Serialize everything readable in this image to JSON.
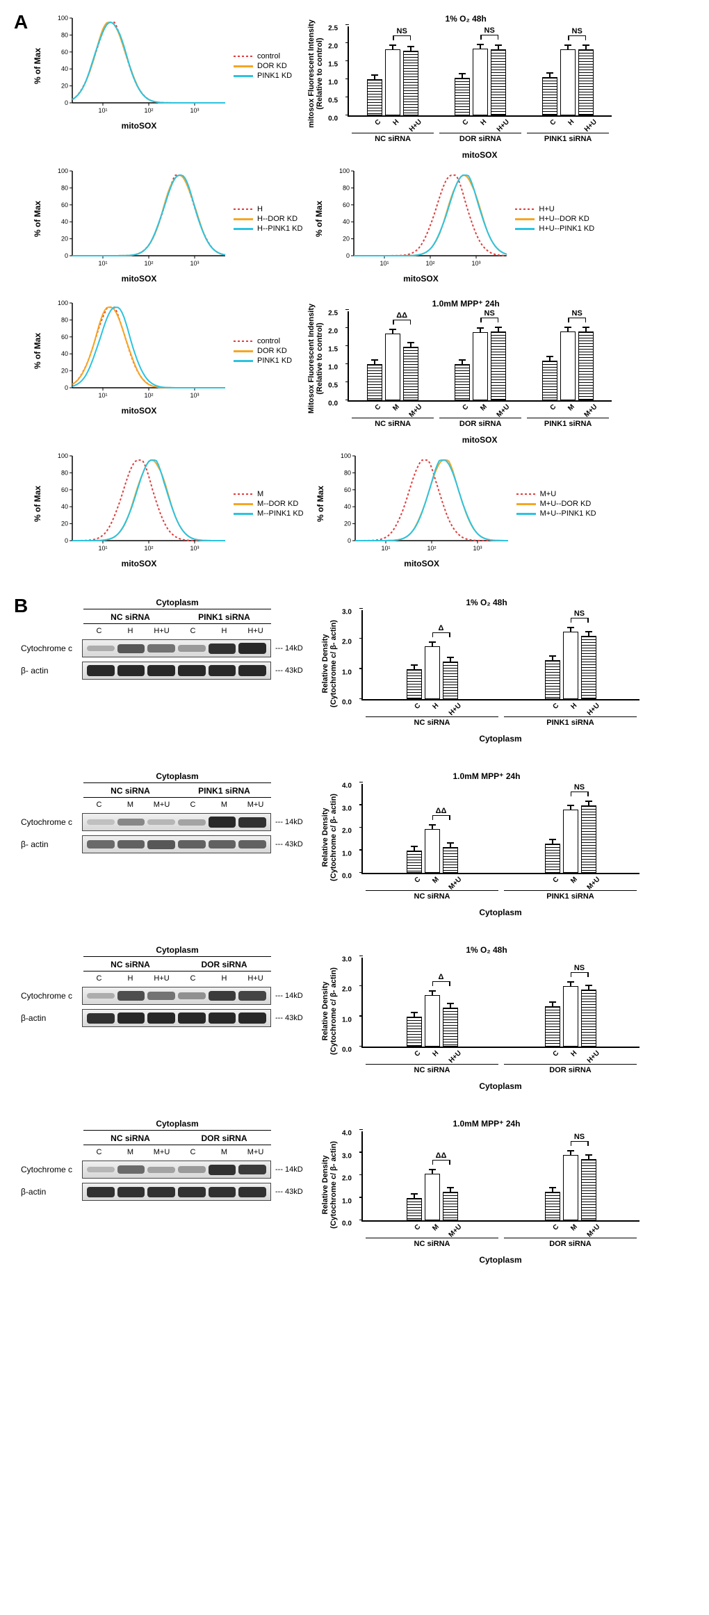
{
  "colors": {
    "red": "#e23b3b",
    "orange": "#f5a623",
    "cyan": "#2bc3e0",
    "black": "#000000",
    "band_dark": "#2a2a2a",
    "band_mid": "#6f6f6f",
    "band_light": "#b5b5b5"
  },
  "panelA": {
    "label": "A",
    "histograms": {
      "ylabel": "% of Max",
      "xlabel": "mitoSOX",
      "yticks": [
        0,
        20,
        40,
        60,
        80,
        100
      ],
      "xticks": [
        "10¹",
        "10²",
        "10³"
      ],
      "sets": [
        {
          "legend": [
            {
              "label": "control",
              "color": "red",
              "style": "dotted"
            },
            {
              "label": "DOR KD",
              "color": "orange",
              "style": "solid"
            },
            {
              "label": "PINK1 KD",
              "color": "cyan",
              "style": "solid"
            }
          ],
          "shift": [
            0,
            0,
            0
          ],
          "peak": 0.25
        },
        {
          "legend": [
            {
              "label": "H",
              "color": "red",
              "style": "dotted"
            },
            {
              "label": "H--DOR KD",
              "color": "orange",
              "style": "solid"
            },
            {
              "label": "H--PINK1 KD",
              "color": "cyan",
              "style": "solid"
            }
          ],
          "shift": [
            0,
            0,
            0
          ],
          "peak": 0.7
        },
        {
          "legend": [
            {
              "label": "H+U",
              "color": "red",
              "style": "dotted"
            },
            {
              "label": "H+U--DOR KD",
              "color": "orange",
              "style": "solid"
            },
            {
              "label": "H+U--PINK1 KD",
              "color": "cyan",
              "style": "solid"
            }
          ],
          "shift": [
            -0.06,
            0.02,
            0.02
          ],
          "peak": 0.7
        },
        {
          "legend": [
            {
              "label": "control",
              "color": "red",
              "style": "dotted"
            },
            {
              "label": "DOR KD",
              "color": "orange",
              "style": "solid"
            },
            {
              "label": "PINK1 KD",
              "color": "cyan",
              "style": "solid"
            }
          ],
          "shift": [
            0,
            0,
            0.03
          ],
          "peak": 0.25
        },
        {
          "legend": [
            {
              "label": "M",
              "color": "red",
              "style": "dotted"
            },
            {
              "label": "M--DOR KD",
              "color": "orange",
              "style": "solid"
            },
            {
              "label": "M--PINK1 KD",
              "color": "cyan",
              "style": "solid"
            }
          ],
          "shift": [
            -0.07,
            0.02,
            0.02
          ],
          "peak": 0.5
        },
        {
          "legend": [
            {
              "label": "M+U",
              "color": "red",
              "style": "dotted"
            },
            {
              "label": "M+U--DOR KD",
              "color": "orange",
              "style": "solid"
            },
            {
              "label": "M+U--PINK1 KD",
              "color": "cyan",
              "style": "solid"
            }
          ],
          "shift": [
            -0.1,
            0.03,
            0.03
          ],
          "peak": 0.55
        }
      ]
    },
    "barcharts": [
      {
        "title": "1% O₂  48h",
        "ylabel": "mitosox Fluorescent Intensity\n(Relative to control)",
        "xlabel_main": "mitoSOX",
        "ymax": 2.5,
        "ytick_step": 0.5,
        "groups": [
          {
            "name": "NC siRNA",
            "bars": [
              {
                "label": "C",
                "value": 1.0,
                "fill": "hatched"
              },
              {
                "label": "H",
                "value": 1.82,
                "fill": "white"
              },
              {
                "label": "H+U",
                "value": 1.78,
                "fill": "hatched"
              }
            ],
            "sig": {
              "from": 1,
              "to": 2,
              "label": "NS"
            }
          },
          {
            "name": "DOR siRNA",
            "bars": [
              {
                "label": "C",
                "value": 1.03,
                "fill": "hatched"
              },
              {
                "label": "H",
                "value": 1.85,
                "fill": "white"
              },
              {
                "label": "H+U",
                "value": 1.82,
                "fill": "hatched"
              }
            ],
            "sig": {
              "from": 1,
              "to": 2,
              "label": "NS"
            }
          },
          {
            "name": "PINK1 siRNA",
            "bars": [
              {
                "label": "C",
                "value": 1.06,
                "fill": "hatched"
              },
              {
                "label": "H",
                "value": 1.82,
                "fill": "white"
              },
              {
                "label": "H+U",
                "value": 1.83,
                "fill": "hatched"
              }
            ],
            "sig": {
              "from": 1,
              "to": 2,
              "label": "NS"
            }
          }
        ]
      },
      {
        "title": "1.0mM MPP⁺ 24h",
        "ylabel": "Mitosox Fluorescent Indensity\n(Relative to control)",
        "xlabel_main": "mitoSOX",
        "ymax": 2.5,
        "ytick_step": 0.5,
        "groups": [
          {
            "name": "NC siRNA",
            "bars": [
              {
                "label": "C",
                "value": 1.0,
                "fill": "hatched"
              },
              {
                "label": "M",
                "value": 1.85,
                "fill": "white"
              },
              {
                "label": "M+U",
                "value": 1.48,
                "fill": "hatched"
              }
            ],
            "sig": {
              "from": 1,
              "to": 2,
              "label": "ΔΔ"
            }
          },
          {
            "name": "DOR siRNA",
            "bars": [
              {
                "label": "C",
                "value": 1.0,
                "fill": "hatched"
              },
              {
                "label": "M",
                "value": 1.88,
                "fill": "white"
              },
              {
                "label": "M+U",
                "value": 1.9,
                "fill": "hatched"
              }
            ],
            "sig": {
              "from": 1,
              "to": 2,
              "label": "NS"
            }
          },
          {
            "name": "PINK1 siRNA",
            "bars": [
              {
                "label": "C",
                "value": 1.1,
                "fill": "hatched"
              },
              {
                "label": "M",
                "value": 1.9,
                "fill": "white"
              },
              {
                "label": "M+U",
                "value": 1.9,
                "fill": "hatched"
              }
            ],
            "sig": {
              "from": 1,
              "to": 2,
              "label": "NS"
            }
          }
        ]
      }
    ]
  },
  "panelB": {
    "label": "B",
    "blots": [
      {
        "header": "Cytoplasm",
        "subgroups": [
          "NC siRNA",
          "PINK1 siRNA"
        ],
        "lanes": [
          "C",
          "H",
          "H+U",
          "C",
          "H",
          "H+U"
        ],
        "rows": [
          {
            "label": "Cytochrome c",
            "mw": "--- 14kD",
            "intensity": [
              0.25,
              0.7,
              0.55,
              0.35,
              0.9,
              0.95
            ]
          },
          {
            "label": "β- actin",
            "mw": "--- 43kD",
            "intensity": [
              0.95,
              0.95,
              0.95,
              0.95,
              0.95,
              0.95
            ]
          }
        ],
        "bar": {
          "title": "1% O₂  48h",
          "ylabel": "Relative Density\n(Cytochrome c/ β- actin)",
          "xlabel_main": "Cytoplasm",
          "ymax": 3.0,
          "ytick_step": 1.0,
          "groups": [
            {
              "name": "NC siRNA",
              "bars": [
                {
                  "label": "C",
                  "value": 1.0,
                  "fill": "hatched"
                },
                {
                  "label": "H",
                  "value": 1.75,
                  "fill": "white"
                },
                {
                  "label": "H+U",
                  "value": 1.25,
                  "fill": "hatched"
                }
              ],
              "sig": {
                "from": 1,
                "to": 2,
                "label": "Δ"
              }
            },
            {
              "name": "PINK1 siRNA",
              "bars": [
                {
                  "label": "C",
                  "value": 1.3,
                  "fill": "hatched"
                },
                {
                  "label": "H",
                  "value": 2.25,
                  "fill": "white"
                },
                {
                  "label": "H+U",
                  "value": 2.1,
                  "fill": "hatched"
                }
              ],
              "sig": {
                "from": 1,
                "to": 2,
                "label": "NS"
              }
            }
          ]
        }
      },
      {
        "header": "Cytoplasm",
        "subgroups": [
          "NC siRNA",
          "PINK1 siRNA"
        ],
        "lanes": [
          "C",
          "M",
          "M+U",
          "C",
          "M",
          "M+U"
        ],
        "rows": [
          {
            "label": "Cytochrome c",
            "mw": "--- 14kD",
            "intensity": [
              0.15,
              0.45,
              0.2,
              0.3,
              0.95,
              0.9
            ]
          },
          {
            "label": "β- actin",
            "mw": "--- 43kD",
            "intensity": [
              0.6,
              0.65,
              0.7,
              0.65,
              0.65,
              0.65
            ]
          }
        ],
        "bar": {
          "title": "1.0mM MPP⁺ 24h",
          "ylabel": "Relative Density\n(Cytochrome c/ β- actin)",
          "xlabel_main": "Cytoplasm",
          "ymax": 4.0,
          "ytick_step": 1.0,
          "groups": [
            {
              "name": "NC siRNA",
              "bars": [
                {
                  "label": "C",
                  "value": 1.0,
                  "fill": "hatched"
                },
                {
                  "label": "M",
                  "value": 1.95,
                  "fill": "white"
                },
                {
                  "label": "M+U",
                  "value": 1.15,
                  "fill": "hatched"
                }
              ],
              "sig": {
                "from": 1,
                "to": 2,
                "label": "ΔΔ"
              }
            },
            {
              "name": "PINK1 siRNA",
              "bars": [
                {
                  "label": "C",
                  "value": 1.3,
                  "fill": "hatched"
                },
                {
                  "label": "M",
                  "value": 2.8,
                  "fill": "white"
                },
                {
                  "label": "M+U",
                  "value": 3.0,
                  "fill": "hatched"
                }
              ],
              "sig": {
                "from": 1,
                "to": 2,
                "label": "NS"
              }
            }
          ]
        }
      },
      {
        "header": "Cytoplasm",
        "subgroups": [
          "NC siRNA",
          "DOR siRNA"
        ],
        "lanes": [
          "C",
          "H",
          "H+U",
          "C",
          "H",
          "H+U"
        ],
        "rows": [
          {
            "label": "Cytochrome c",
            "mw": "--- 14kD",
            "intensity": [
              0.25,
              0.75,
              0.55,
              0.4,
              0.85,
              0.8
            ]
          },
          {
            "label": "β-actin",
            "mw": "--- 43kD",
            "intensity": [
              0.9,
              0.95,
              0.95,
              0.95,
              0.95,
              0.95
            ]
          }
        ],
        "bar": {
          "title": "1% O₂  48h",
          "ylabel": "Relative Density\n(Cytochrome c/ β- actin)",
          "xlabel_main": "Cytoplasm",
          "ymax": 3.0,
          "ytick_step": 1.0,
          "groups": [
            {
              "name": "NC siRNA",
              "bars": [
                {
                  "label": "C",
                  "value": 1.0,
                  "fill": "hatched"
                },
                {
                  "label": "H",
                  "value": 1.7,
                  "fill": "white"
                },
                {
                  "label": "H+U",
                  "value": 1.3,
                  "fill": "hatched"
                }
              ],
              "sig": {
                "from": 1,
                "to": 2,
                "label": "Δ"
              }
            },
            {
              "name": "DOR siRNA",
              "bars": [
                {
                  "label": "C",
                  "value": 1.35,
                  "fill": "hatched"
                },
                {
                  "label": "H",
                  "value": 2.0,
                  "fill": "white"
                },
                {
                  "label": "H+U",
                  "value": 1.9,
                  "fill": "hatched"
                }
              ],
              "sig": {
                "from": 1,
                "to": 2,
                "label": "NS"
              }
            }
          ]
        }
      },
      {
        "header": "Cytoplasm",
        "subgroups": [
          "NC siRNA",
          "DOR siRNA"
        ],
        "lanes": [
          "C",
          "M",
          "M+U",
          "C",
          "M",
          "M+U"
        ],
        "rows": [
          {
            "label": "Cytochrome c",
            "mw": "--- 14kD",
            "intensity": [
              0.2,
              0.6,
              0.3,
              0.35,
              0.9,
              0.85
            ]
          },
          {
            "label": "β-actin",
            "mw": "--- 43kD",
            "intensity": [
              0.9,
              0.9,
              0.9,
              0.9,
              0.9,
              0.9
            ]
          }
        ],
        "bar": {
          "title": "1.0mM MPP⁺ 24h",
          "ylabel": "Relative Density\n(Cytochrome c/ β- actin)",
          "xlabel_main": "Cytoplasm",
          "ymax": 4.0,
          "ytick_step": 1.0,
          "groups": [
            {
              "name": "NC siRNA",
              "bars": [
                {
                  "label": "C",
                  "value": 1.0,
                  "fill": "hatched"
                },
                {
                  "label": "M",
                  "value": 2.05,
                  "fill": "white"
                },
                {
                  "label": "M+U",
                  "value": 1.25,
                  "fill": "hatched"
                }
              ],
              "sig": {
                "from": 1,
                "to": 2,
                "label": "ΔΔ"
              }
            },
            {
              "name": "DOR siRNA",
              "bars": [
                {
                  "label": "C",
                  "value": 1.25,
                  "fill": "hatched"
                },
                {
                  "label": "M",
                  "value": 2.9,
                  "fill": "white"
                },
                {
                  "label": "M+U",
                  "value": 2.7,
                  "fill": "hatched"
                }
              ],
              "sig": {
                "from": 1,
                "to": 2,
                "label": "NS"
              }
            }
          ]
        }
      }
    ]
  }
}
